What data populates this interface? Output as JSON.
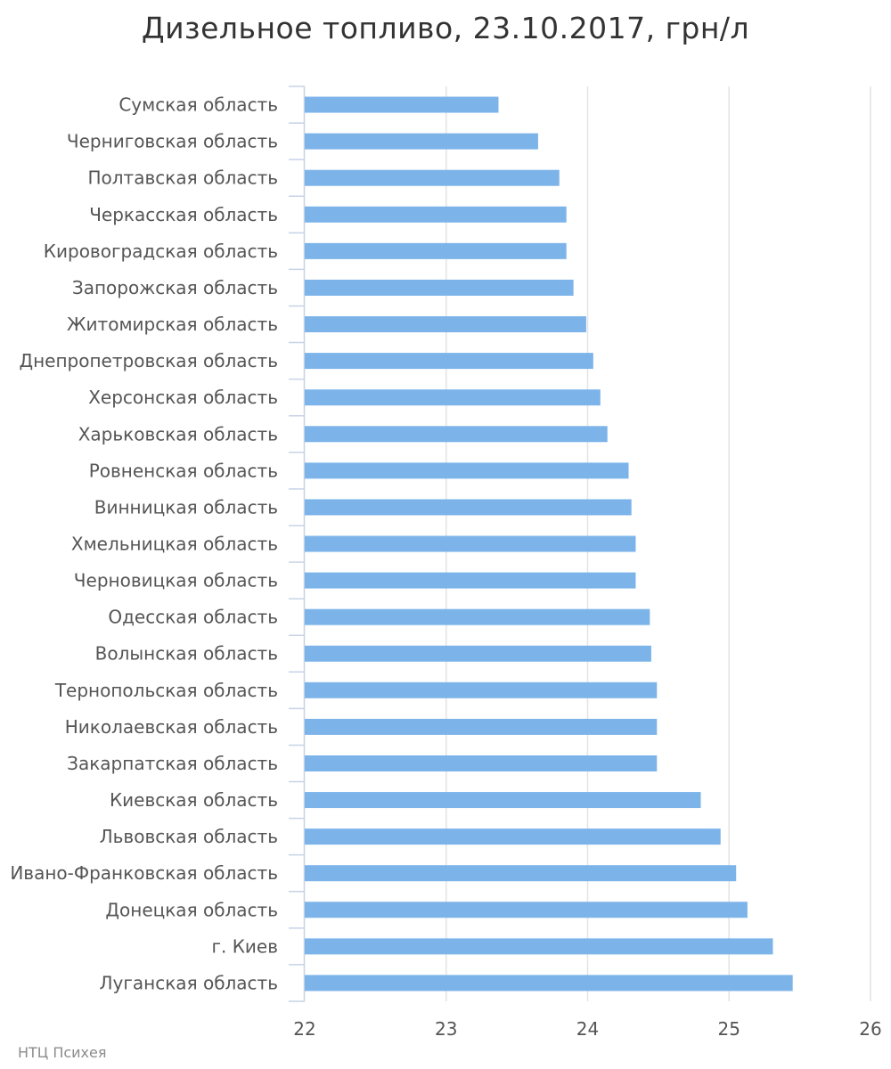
{
  "chart_data": {
    "type": "bar",
    "orientation": "horizontal",
    "title": "Дизельное топливо, 23.10.2017, грн/л",
    "xlabel": "",
    "ylabel": "",
    "xlim": [
      22,
      26
    ],
    "x_ticks": [
      "22",
      "23",
      "24",
      "25",
      "26"
    ],
    "grid": true,
    "bar_color": "#7cb4ea",
    "categories": [
      "Сумская область",
      "Черниговская область",
      "Полтавская область",
      "Черкасская область",
      "Кировоградская область",
      "Запорожская область",
      "Житомирская область",
      "Днепропетровская область",
      "Херсонская область",
      "Харьковская область",
      "Ровненская область",
      "Винницкая область",
      "Хмельницкая область",
      "Черновицкая область",
      "Одесская область",
      "Волынская область",
      "Тернопольская область",
      "Николаевская область",
      "Закарпатская область",
      "Киевская область",
      "Львовская область",
      "Ивано-Франковская область",
      "Донецкая область",
      "г. Киев",
      "Луганская область"
    ],
    "values": [
      23.37,
      23.65,
      23.8,
      23.85,
      23.85,
      23.9,
      23.99,
      24.04,
      24.09,
      24.14,
      24.29,
      24.31,
      24.34,
      24.34,
      24.44,
      24.45,
      24.49,
      24.49,
      24.49,
      24.8,
      24.94,
      25.05,
      25.13,
      25.31,
      25.45
    ]
  },
  "source": "НТЦ Психея"
}
